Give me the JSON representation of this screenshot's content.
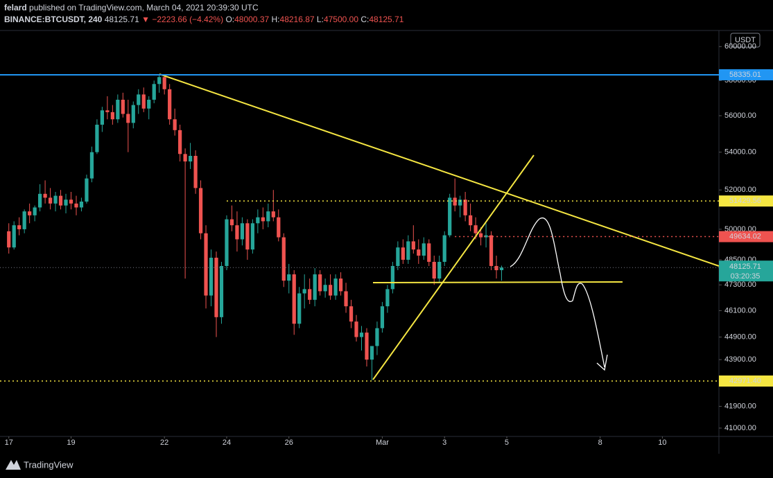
{
  "header": {
    "author": "felard",
    "published": "published on TradingView.com, March 04, 2021 20:39:30 UTC",
    "symbol": "BINANCE:BTCUSDT, 240",
    "price": "48125.71",
    "arrow": "▼",
    "change": "−2223.66 (−4.42%)",
    "ohlc": [
      {
        "label": "O:",
        "value": "48000.37"
      },
      {
        "label": "H:",
        "value": "48216.87"
      },
      {
        "label": "L:",
        "value": "47500.00"
      },
      {
        "label": "C:",
        "value": "48125.71"
      }
    ]
  },
  "footer": {
    "brand": "TradingView"
  },
  "chart_data": {
    "type": "candlestick",
    "currency": "USDT",
    "log_scale": true,
    "grid": false,
    "up_color": "#26a69a",
    "down_color": "#ef5350",
    "xlim": [
      -1.7,
      136.9
    ],
    "ylim": [
      40660,
      60930
    ],
    "xticks": [
      {
        "value": 0,
        "label": "17"
      },
      {
        "value": 12,
        "label": "19"
      },
      {
        "value": 30,
        "label": "22"
      },
      {
        "value": 42,
        "label": "24"
      },
      {
        "value": 54,
        "label": "26"
      },
      {
        "value": 72,
        "label": "Mar"
      },
      {
        "value": 84,
        "label": "3"
      },
      {
        "value": 96,
        "label": "5"
      },
      {
        "value": 114,
        "label": "8"
      },
      {
        "value": 126,
        "label": "10"
      }
    ],
    "yticks": [
      {
        "value": 60000,
        "label": "60000.00"
      },
      {
        "value": 58000,
        "label": "58000.00"
      },
      {
        "value": 56000,
        "label": "56000.00"
      },
      {
        "value": 54000,
        "label": "54000.00"
      },
      {
        "value": 52000,
        "label": "52000.00"
      },
      {
        "value": 50000,
        "label": "50000.00"
      },
      {
        "value": 48500,
        "label": "48500.00"
      },
      {
        "value": 47300,
        "label": "47300.00"
      },
      {
        "value": 46100,
        "label": "46100.00"
      },
      {
        "value": 44900,
        "label": "44900.00"
      },
      {
        "value": 43900,
        "label": "43900.00"
      },
      {
        "value": 41900,
        "label": "41900.00"
      },
      {
        "value": 41000,
        "label": "41000.00"
      }
    ],
    "levels": [
      {
        "value": 58335.01,
        "color": "#2196f3",
        "text_color": "#000000",
        "dash": false
      },
      {
        "value": 51429.56,
        "color": "#f5e642",
        "text_color": "#000000",
        "dash": true,
        "start": 42
      },
      {
        "value": 49634.02,
        "color": "#ef5350",
        "text_color": "#ffffff",
        "dash": true,
        "start": 86
      },
      {
        "value": 42971.4,
        "label": "42971.40",
        "color": "#f5e642",
        "text_color": "#000000",
        "dash": true
      }
    ],
    "last": {
      "value": 48125.71,
      "countdown": "03:20:35",
      "color": "#26a69a"
    },
    "open": [
      49900,
      49100,
      50200,
      50000,
      50900,
      50700,
      51100,
      51800,
      51600,
      51300,
      51700,
      51200,
      51500,
      51300,
      51100,
      51400,
      52600,
      54000,
      55500,
      56300,
      56200,
      55800,
      56900,
      56100,
      55600,
      56600,
      57200,
      56400,
      56900,
      57800,
      58200,
      57500,
      55800,
      55200,
      53900,
      53500,
      53800,
      52100,
      49800,
      46800,
      48600,
      45800,
      48200,
      50500,
      50200,
      49500,
      50300,
      49000,
      50300,
      50600,
      50400,
      50900,
      50600,
      49600,
      47500,
      47800,
      45500,
      46900,
      47100,
      46600,
      47800,
      47000,
      47300,
      46800,
      47600,
      47000,
      46300,
      45600,
      44900,
      45100,
      43900,
      44500,
      45300,
      46300,
      47100,
      48200,
      49100,
      48500,
      49400,
      49000,
      48700,
      49300,
      48400,
      47600,
      48400,
      49700,
      51600,
      51200,
      51500,
      50700,
      50200,
      49800,
      49600,
      49700,
      48200,
      48000.37
    ],
    "high": [
      50300,
      50400,
      50600,
      51000,
      51300,
      51200,
      52300,
      52500,
      52100,
      51900,
      52000,
      51800,
      51900,
      51700,
      51600,
      52800,
      54300,
      55800,
      56500,
      57100,
      56600,
      57200,
      57300,
      56900,
      56800,
      57500,
      57600,
      57100,
      58000,
      58350,
      58300,
      57800,
      56400,
      55500,
      54200,
      54500,
      54100,
      52500,
      50200,
      49000,
      48900,
      48400,
      50700,
      51200,
      50900,
      50600,
      50500,
      50500,
      51000,
      51100,
      51300,
      52000,
      51000,
      49800,
      48300,
      48000,
      47200,
      47800,
      47600,
      48100,
      48000,
      47600,
      47800,
      47800,
      47900,
      47400,
      46600,
      45900,
      45400,
      45300,
      44300,
      45600,
      46500,
      47300,
      48400,
      49400,
      49500,
      49700,
      50200,
      49500,
      49600,
      49500,
      48700,
      48700,
      49900,
      51800,
      52600,
      51700,
      51900,
      51300,
      50600,
      50100,
      50300,
      49900,
      48700,
      48216.87
    ],
    "low": [
      48800,
      49000,
      49700,
      49800,
      50300,
      50400,
      50900,
      51300,
      51000,
      50900,
      51000,
      50800,
      51000,
      50700,
      50900,
      51300,
      52400,
      53900,
      55100,
      55800,
      55500,
      55600,
      55900,
      54000,
      55300,
      56100,
      56200,
      55800,
      56700,
      57300,
      57200,
      55500,
      54900,
      53500,
      47600,
      53100,
      51800,
      49500,
      46200,
      46300,
      44900,
      45500,
      48000,
      49900,
      48900,
      49200,
      48500,
      48800,
      49800,
      50000,
      50100,
      50400,
      49400,
      47200,
      46900,
      45000,
      45300,
      46200,
      46400,
      46300,
      46800,
      46700,
      46600,
      46600,
      46800,
      46000,
      45300,
      44700,
      44300,
      43600,
      43000,
      44100,
      45100,
      46000,
      46900,
      48000,
      48300,
      48300,
      48800,
      48300,
      48500,
      48200,
      47300,
      47400,
      48200,
      49600,
      50900,
      50600,
      50400,
      49900,
      49500,
      49200,
      49100,
      48000,
      47600,
      47500.0
    ],
    "close": [
      49100,
      50200,
      50000,
      50900,
      50700,
      51100,
      51800,
      51600,
      51300,
      51700,
      51200,
      51500,
      51300,
      51100,
      51400,
      52600,
      54000,
      55500,
      56300,
      56200,
      55800,
      56900,
      56100,
      55600,
      56600,
      57200,
      56400,
      56900,
      57800,
      58200,
      57500,
      55800,
      55200,
      53900,
      53500,
      53800,
      52100,
      49800,
      46800,
      48600,
      45800,
      48200,
      50500,
      50200,
      49500,
      50300,
      49000,
      50300,
      50600,
      50400,
      50900,
      50600,
      49600,
      47500,
      47800,
      45500,
      46900,
      47100,
      46600,
      47800,
      47000,
      47300,
      46800,
      47600,
      47000,
      46300,
      45600,
      44900,
      45100,
      43900,
      44500,
      45300,
      46300,
      47100,
      48200,
      49100,
      48500,
      49400,
      49000,
      48700,
      49300,
      48400,
      47600,
      48400,
      49700,
      51600,
      51200,
      51500,
      50700,
      50200,
      49800,
      49600,
      49700,
      48200,
      48000,
      48125.71
    ]
  }
}
